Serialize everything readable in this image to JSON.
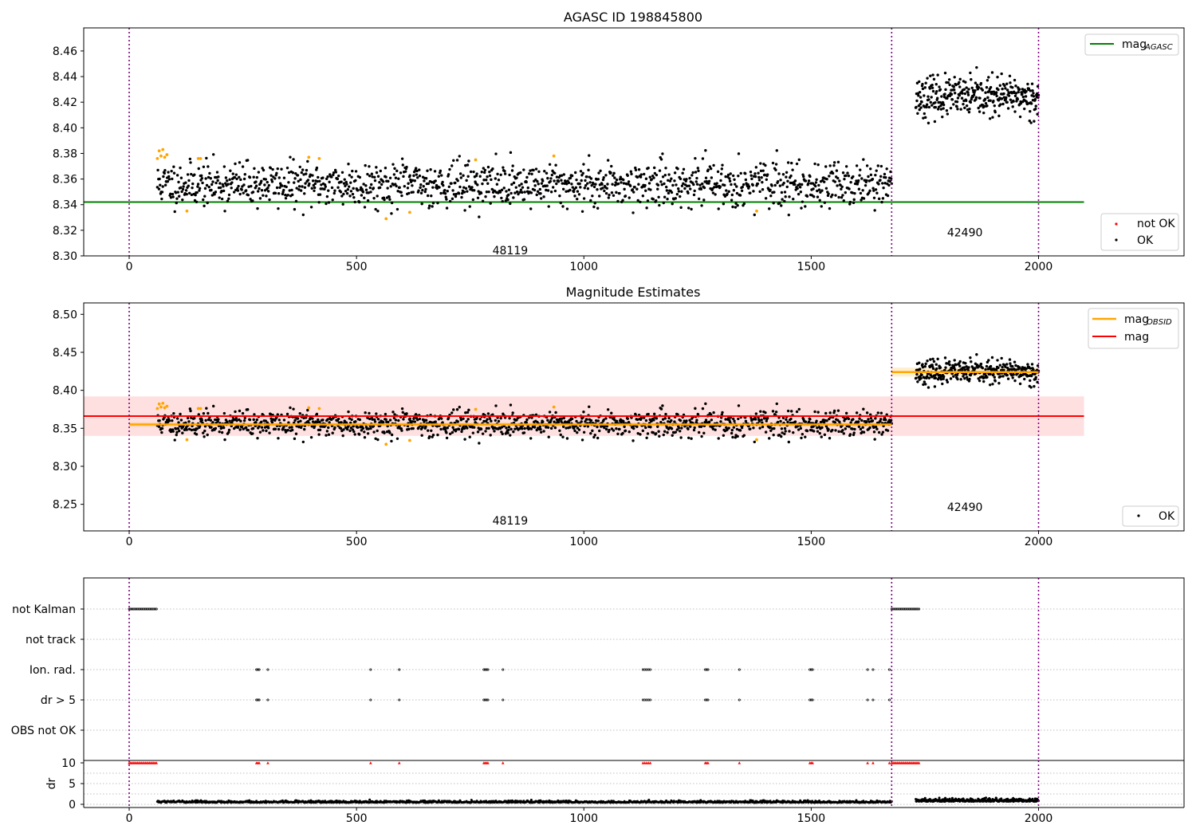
{
  "chart_data": [
    {
      "type": "scatter",
      "title": "AGASC ID 198845800",
      "xlabel": "",
      "ylabel": "",
      "xlim": [
        -100,
        2320
      ],
      "ylim": [
        8.3,
        8.478
      ],
      "x_ticks": [
        0,
        500,
        1000,
        1500,
        2000
      ],
      "x_tick_labels": [
        "0",
        "500",
        "1000",
        "1500",
        "2000"
      ],
      "y_ticks": [
        8.3,
        8.32,
        8.34,
        8.36,
        8.38,
        8.4,
        8.42,
        8.44,
        8.46
      ],
      "y_tick_labels": [
        "8.30",
        "8.32",
        "8.34",
        "8.36",
        "8.38",
        "8.40",
        "8.42",
        "8.44",
        "8.46"
      ],
      "mag_agasc": 8.342,
      "mag_agasc_extent": [
        -100,
        2100
      ],
      "obsid_boundaries": [
        0,
        1677,
        2000
      ],
      "obsid_labels": [
        {
          "text": "48119",
          "x": 838,
          "y": 8.3045
        },
        {
          "text": "42490",
          "x": 1838,
          "y": 8.3185
        }
      ],
      "series": [
        {
          "name": "not OK",
          "color": "#ffa500",
          "x": [
            62,
            66,
            70,
            74,
            78,
            83,
            127,
            152,
            157,
            395,
            418,
            565,
            617,
            762,
            934,
            1380
          ],
          "y": [
            8.376,
            8.382,
            8.378,
            8.383,
            8.377,
            8.379,
            8.335,
            8.376,
            8.376,
            8.377,
            8.376,
            8.329,
            8.334,
            8.375,
            8.378,
            8.335
          ]
        },
        {
          "name": "OK",
          "color": "#000000",
          "segments": [
            {
              "x_range": [
                62,
                1677
              ],
              "count": 1350,
              "center": 8.356,
              "spread": 0.0085,
              "seed": 11
            },
            {
              "x_range": [
                1730,
                2000
              ],
              "count": 330,
              "center": 8.424,
              "spread": 0.0075,
              "seed": 23
            }
          ]
        }
      ],
      "legend_top": [
        {
          "label": "mag",
          "subscript": "AGASC",
          "color": "#008000"
        }
      ],
      "legend_bottom": [
        {
          "label": "not OK",
          "color": "#ff0000"
        },
        {
          "label": "OK",
          "color": "#000000"
        }
      ],
      "legend_placement": [
        "top-right",
        "lower-right"
      ]
    },
    {
      "type": "scatter",
      "title": "Magnitude Estimates",
      "xlabel": "",
      "ylabel": "",
      "xlim": [
        -100,
        2320
      ],
      "ylim": [
        8.215,
        8.515
      ],
      "x_ticks": [
        0,
        500,
        1000,
        1500,
        2000
      ],
      "x_tick_labels": [
        "0",
        "500",
        "1000",
        "1500",
        "2000"
      ],
      "y_ticks": [
        8.25,
        8.3,
        8.35,
        8.4,
        8.45,
        8.5
      ],
      "y_tick_labels": [
        "8.25",
        "8.30",
        "8.35",
        "8.40",
        "8.45",
        "8.50"
      ],
      "mag": 8.366,
      "mag_band": [
        8.34,
        8.392
      ],
      "mag_extent": [
        -100,
        2100
      ],
      "mag_obsid": [
        {
          "x_range": [
            0,
            1677
          ],
          "value": 8.355,
          "band": [
            8.352,
            8.358
          ]
        },
        {
          "x_range": [
            1677,
            2000
          ],
          "value": 8.424,
          "band": [
            8.418,
            8.43
          ]
        }
      ],
      "obsid_boundaries": [
        0,
        1677,
        2000
      ],
      "obsid_labels": [
        {
          "text": "48119",
          "x": 838,
          "y": 8.2285
        },
        {
          "text": "42490",
          "x": 1838,
          "y": 8.2465
        }
      ],
      "legend_top": [
        {
          "label": "mag",
          "subscript": "OBSID",
          "color": "#ffa500"
        },
        {
          "label": "mag",
          "subscript": "",
          "color": "#ff0000"
        }
      ],
      "legend_bottom": [
        {
          "label": "OK",
          "color": "#000000"
        }
      ],
      "legend_placement": [
        "top-right",
        "lower-right"
      ]
    },
    {
      "type": "scatter",
      "title": "",
      "xlabel": "",
      "ylabel": "",
      "xlim": [
        -100,
        2320
      ],
      "flag_categories": [
        "not Kalman",
        "not track",
        "Ion. rad.",
        "dr > 5",
        "OBS not OK"
      ],
      "flag_points": {
        "not Kalman": [
          [
            0,
            60
          ],
          [
            1677,
            1737
          ]
        ],
        "not track": [],
        "Ion. rad.": [
          280,
          283,
          286,
          305,
          531,
          594,
          780,
          783,
          786,
          789,
          822,
          1130,
          1134,
          1138,
          1142,
          1146,
          1267,
          1270,
          1273,
          1342,
          1497,
          1500,
          1503,
          1624,
          1636,
          1672
        ],
        "dr > 5": [
          280,
          283,
          286,
          305,
          531,
          594,
          780,
          783,
          786,
          789,
          822,
          1130,
          1134,
          1138,
          1142,
          1146,
          1267,
          1270,
          1273,
          1342,
          1497,
          1500,
          1503,
          1624,
          1636,
          1672
        ],
        "OBS not OK": []
      }
    },
    {
      "type": "scatter",
      "title": "",
      "xlabel": "",
      "ylabel": "dr",
      "xlim": [
        -100,
        2320
      ],
      "ylim": [
        -0.5,
        10.5
      ],
      "y_ticks": [
        0,
        5,
        10
      ],
      "y_tick_labels": [
        "0",
        "5",
        "10"
      ],
      "x_ticks": [
        0,
        500,
        1000,
        1500,
        2000
      ],
      "x_tick_labels": [
        "0",
        "500",
        "1000",
        "1500",
        "2000"
      ],
      "clipped_value": 10,
      "clipped_points": {
        "ranges": [
          [
            0,
            60
          ],
          [
            1677,
            1737
          ]
        ],
        "x": [
          280,
          283,
          286,
          305,
          531,
          594,
          780,
          783,
          786,
          789,
          822,
          1130,
          1134,
          1138,
          1142,
          1146,
          1267,
          1270,
          1273,
          1342,
          1497,
          1500,
          1503,
          1624,
          1636,
          1672
        ]
      },
      "segments": [
        {
          "x_range": [
            62,
            1677
          ],
          "count": 1350,
          "center": 0.55,
          "spread": 0.25,
          "seed": 37
        },
        {
          "x_range": [
            1730,
            2000
          ],
          "count": 330,
          "center": 0.8,
          "spread": 0.4,
          "seed": 41
        }
      ]
    }
  ]
}
